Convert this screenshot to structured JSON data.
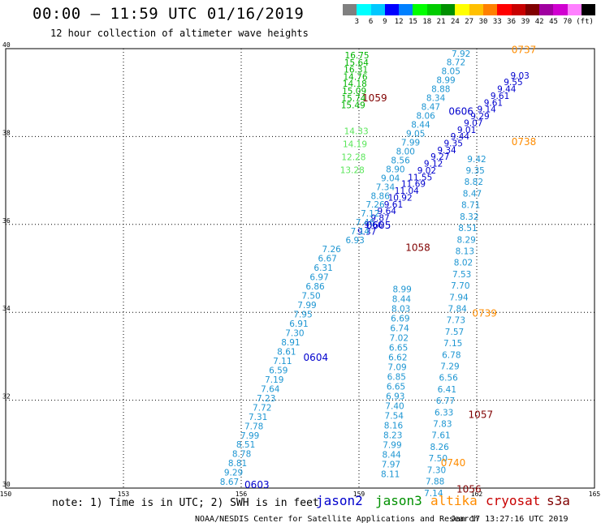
{
  "header": {
    "title": "00:00 – 11:59 UTC 01/16/2019",
    "subtitle": "12 hour collection of altimeter wave heights"
  },
  "legend": {
    "colors": [
      "#808080",
      "#00ffff",
      "#00c8ff",
      "#0000ff",
      "#0080ff",
      "#00ff00",
      "#00cc00",
      "#009000",
      "#ffff00",
      "#ffc000",
      "#ff8000",
      "#ff0000",
      "#c80000",
      "#800000",
      "#a000a0",
      "#d000d0",
      "#ff80ff",
      "#000000"
    ],
    "labels": [
      "3",
      "6",
      "9",
      "12",
      "15",
      "18",
      "21",
      "24",
      "27",
      "30",
      "33",
      "36",
      "39",
      "42",
      "45",
      "70",
      "(ft)"
    ]
  },
  "chart_data": {
    "type": "scatter",
    "xlim": [
      150,
      165
    ],
    "ylim": [
      30,
      40
    ],
    "xticks": [
      "150",
      "153",
      "156",
      "159",
      "162",
      "165"
    ],
    "yticks": [
      "30",
      "32",
      "34",
      "36",
      "38",
      "40"
    ],
    "grid": true,
    "time_labels": [
      {
        "text": "0737",
        "lon": 163.2,
        "lat": 39.9,
        "color": "#ff8c00"
      },
      {
        "text": "0738",
        "lon": 163.2,
        "lat": 37.8,
        "color": "#ff8c00"
      },
      {
        "text": "0739",
        "lon": 162.2,
        "lat": 33.9,
        "color": "#ff8c00"
      },
      {
        "text": "0740",
        "lon": 161.4,
        "lat": 30.5,
        "color": "#ff8c00"
      },
      {
        "text": "1059",
        "lon": 159.4,
        "lat": 38.8,
        "color": "#800000"
      },
      {
        "text": "1058",
        "lon": 160.5,
        "lat": 35.4,
        "color": "#800000"
      },
      {
        "text": "1057",
        "lon": 162.1,
        "lat": 31.6,
        "color": "#800000"
      },
      {
        "text": "1056",
        "lon": 161.8,
        "lat": 29.9,
        "color": "#800000"
      },
      {
        "text": "0606",
        "lon": 161.6,
        "lat": 38.5,
        "color": "#0000cd"
      },
      {
        "text": "0605",
        "lon": 159.5,
        "lat": 35.9,
        "color": "#0000cd"
      },
      {
        "text": "0604",
        "lon": 157.9,
        "lat": 32.9,
        "color": "#0000cd"
      },
      {
        "text": "0603",
        "lon": 156.4,
        "lat": 30.0,
        "color": "#0000cd"
      }
    ],
    "tracks": [
      {
        "name": "jason3-track",
        "color": "#00b400",
        "x0": 158.95,
        "x1": 158.85,
        "y0": 39.78,
        "y1": 38.64,
        "values": [
          "16.75",
          "15.64",
          "16.31",
          "14.76",
          "14.18",
          "15.09",
          "15.74",
          "15.49"
        ]
      },
      {
        "name": "light-green",
        "color": "#5ae65a",
        "x0": 158.93,
        "x1": 158.83,
        "y0": 38.05,
        "y1": 37.17,
        "values": [
          "14.33",
          "14.19",
          "12.28",
          "13.28"
        ]
      },
      {
        "name": "jason2-north",
        "color": "#0000cd",
        "x0": 163.1,
        "x1": 159.2,
        "y0": 39.32,
        "y1": 35.77,
        "values": [
          "9.03",
          "9.55",
          "9.44",
          "9.61",
          "9.61",
          "9.14",
          "9.29",
          "9.07",
          "9.01",
          "9.44",
          "9.35",
          "9.34",
          "9.27",
          "9.12",
          "9.02",
          "11.55",
          "11.69",
          "11.04",
          "10.92",
          "9.61",
          "9.64",
          "9.87",
          "9.66",
          "9.37"
        ]
      },
      {
        "name": "jason2-cyan-north",
        "color": "#1e96d2",
        "x0": 161.6,
        "x1": 158.9,
        "y0": 39.82,
        "y1": 35.57,
        "values": [
          "7.92",
          "8.72",
          "8.05",
          "8.99",
          "8.88",
          "8.34",
          "8.47",
          "8.06",
          "8.44",
          "9.05",
          "7.99",
          "8.00",
          "8.56",
          "8.90",
          "9.04",
          "7.34",
          "8.86",
          "7.26",
          "7.12",
          "7.46",
          "7.14",
          "6.93"
        ]
      },
      {
        "name": "altika-track",
        "color": "#1e96d2",
        "x0": 162.0,
        "x1": 160.9,
        "y0": 37.42,
        "y1": 29.82,
        "values": [
          "9.42",
          "9.35",
          "8.82",
          "8.47",
          "8.71",
          "8.32",
          "8.51",
          "8.29",
          "8.13",
          "8.02",
          "7.53",
          "7.70",
          "7.94",
          "7.84",
          "7.73",
          "7.57",
          "7.15",
          "6.78",
          "7.29",
          "6.56",
          "6.41",
          "6.77",
          "6.33",
          "7.83",
          "7.61",
          "8.26",
          "7.50",
          "7.30",
          "7.88",
          "7.14"
        ]
      },
      {
        "name": "cryosat-track",
        "color": "#1e96d2",
        "x0": 160.1,
        "x1": 159.8,
        "y0": 34.46,
        "y1": 30.25,
        "values": [
          "8.99",
          "8.44",
          "8.03",
          "6.69",
          "6.74",
          "7.02",
          "6.65",
          "6.62",
          "7.09",
          "6.85",
          "6.65",
          "6.93",
          "7.40",
          "7.54",
          "8.16",
          "8.23",
          "7.99",
          "8.44",
          "7.97",
          "8.11"
        ]
      },
      {
        "name": "jason2-south",
        "color": "#1e96d2",
        "x0": 158.3,
        "x1": 155.7,
        "y0": 35.37,
        "y1": 30.07,
        "values": [
          "7.26",
          "6.67",
          "6.31",
          "6.97",
          "6.86",
          "7.50",
          "7.99",
          "7.95",
          "6.91",
          "7.30",
          "8.91",
          "8.61",
          "7.11",
          "6.59",
          "7.19",
          "7.64",
          "7.23",
          "7.72",
          "7.31",
          "7.78",
          "7.99",
          "8.51",
          "8.78",
          "8.81",
          "9.29",
          "8.67"
        ]
      }
    ]
  },
  "footer": {
    "note": "note: 1) Time is in UTC; 2) SWH is in feet",
    "satellites": [
      {
        "name": "jason2",
        "color": "#0000cd",
        "x": 389
      },
      {
        "name": "jason3",
        "color": "#009000",
        "x": 462
      },
      {
        "name": "altika",
        "color": "#ff8c00",
        "x": 530
      },
      {
        "name": "cryosat",
        "color": "#c80000",
        "x": 598
      },
      {
        "name": "s3a",
        "color": "#800000",
        "x": 673
      }
    ],
    "credit": "NOAA/NESDIS Center for Satellite Applications and Research",
    "timestamp": "Jan 17 13:27:16 UTC 2019"
  }
}
